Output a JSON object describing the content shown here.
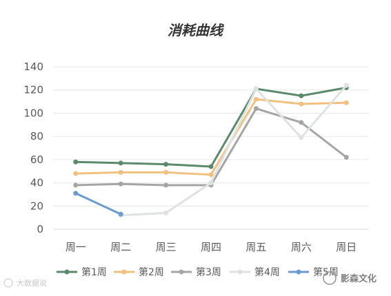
{
  "chart_data": {
    "type": "line",
    "title": "消耗曲线",
    "categories": [
      "周一",
      "周二",
      "周三",
      "周四",
      "周五",
      "周六",
      "周日"
    ],
    "ylim": [
      0,
      140
    ],
    "yticks": [
      0,
      20,
      40,
      60,
      80,
      100,
      120,
      140
    ],
    "grid": true,
    "legend_position": "bottom",
    "series": [
      {
        "name": "第1周",
        "color": "#5a8a6a",
        "values": [
          58,
          57,
          56,
          54,
          121,
          115,
          122
        ]
      },
      {
        "name": "第2周",
        "color": "#f2c07e",
        "values": [
          48,
          49,
          49,
          47,
          112,
          108,
          109
        ]
      },
      {
        "name": "第3周",
        "color": "#a5a5a5",
        "values": [
          38,
          39,
          38,
          38,
          104,
          92,
          62
        ]
      },
      {
        "name": "第4周",
        "color": "#dde3e0",
        "values": [
          null,
          12,
          14,
          40,
          121,
          79,
          124
        ]
      },
      {
        "name": "第5周",
        "color": "#6a9bd0",
        "values": [
          31,
          13,
          null,
          null,
          null,
          null,
          null
        ]
      }
    ]
  },
  "watermark": {
    "left": "大数据说",
    "right": "影森文化"
  }
}
